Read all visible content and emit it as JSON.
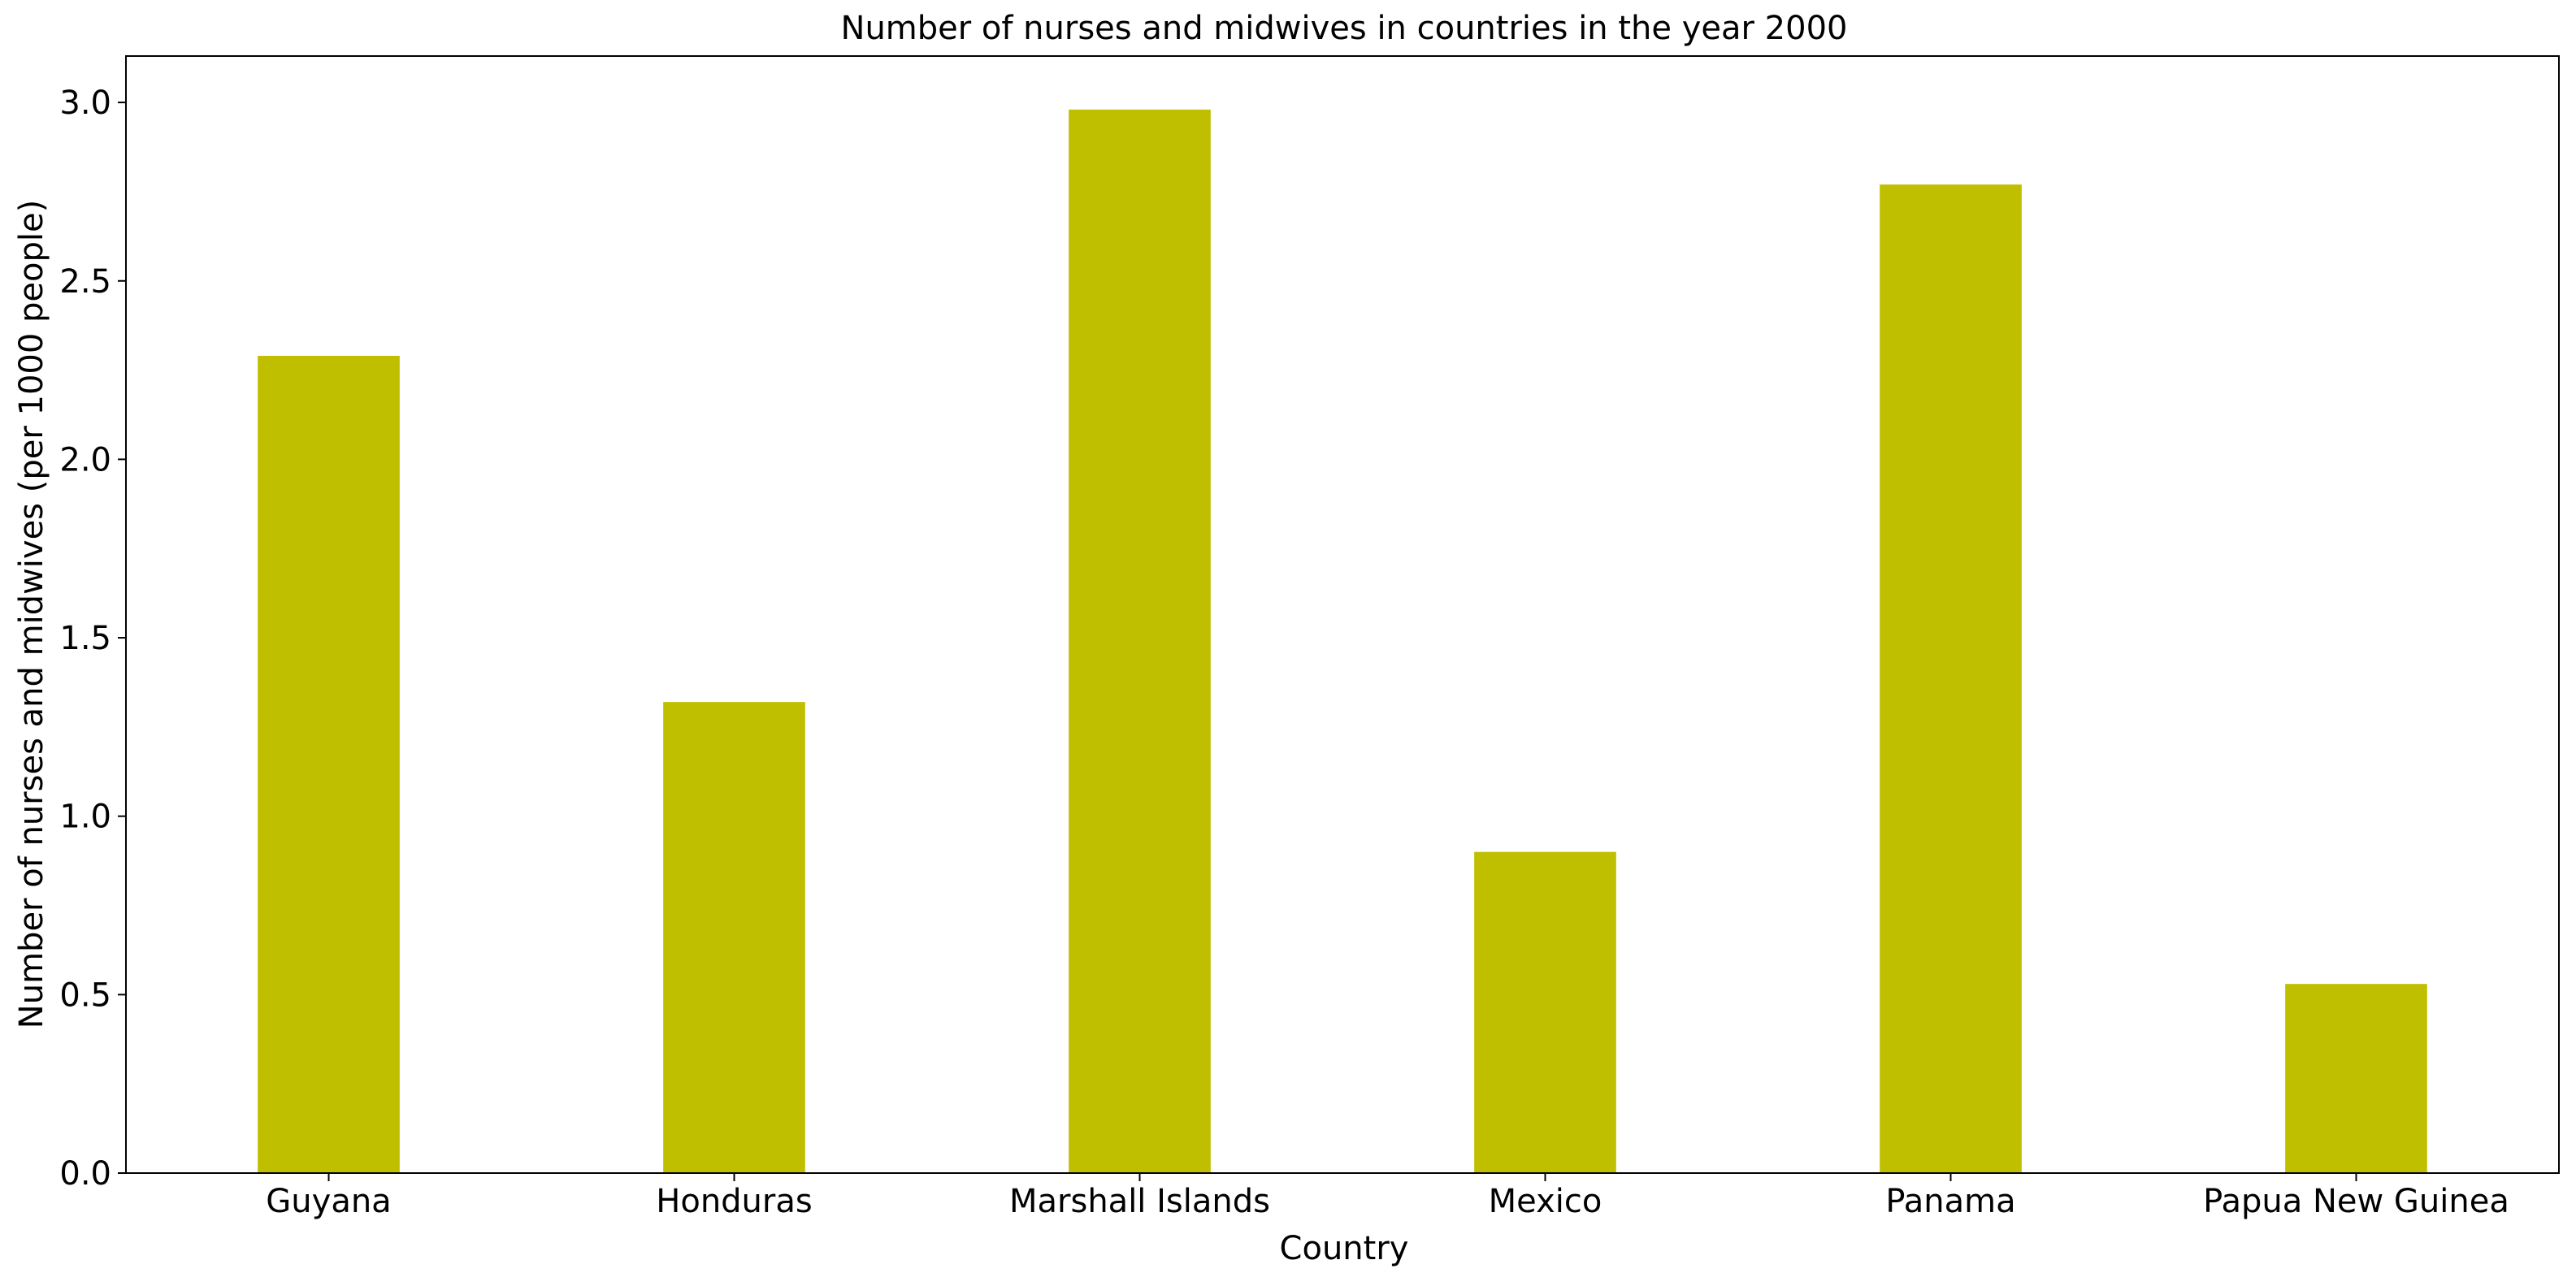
{
  "chart_data": {
    "type": "bar",
    "title": "Number of nurses and midwives in countries in the year 2000",
    "xlabel": "Country",
    "ylabel": "Number of nurses and midwives (per 1000 people)",
    "categories": [
      "Guyana",
      "Honduras",
      "Marshall Islands",
      "Mexico",
      "Panama",
      "Papua New Guinea"
    ],
    "values": [
      2.29,
      1.32,
      2.98,
      0.9,
      2.77,
      0.53
    ],
    "ylim": [
      0,
      3.13
    ],
    "yticks": [
      0.0,
      0.5,
      1.0,
      1.5,
      2.0,
      2.5,
      3.0
    ],
    "ytick_labels": [
      "0.0",
      "0.5",
      "1.0",
      "1.5",
      "2.0",
      "2.5",
      "3.0"
    ],
    "bar_color": "#bfbf00",
    "grid": false,
    "legend": "none"
  }
}
